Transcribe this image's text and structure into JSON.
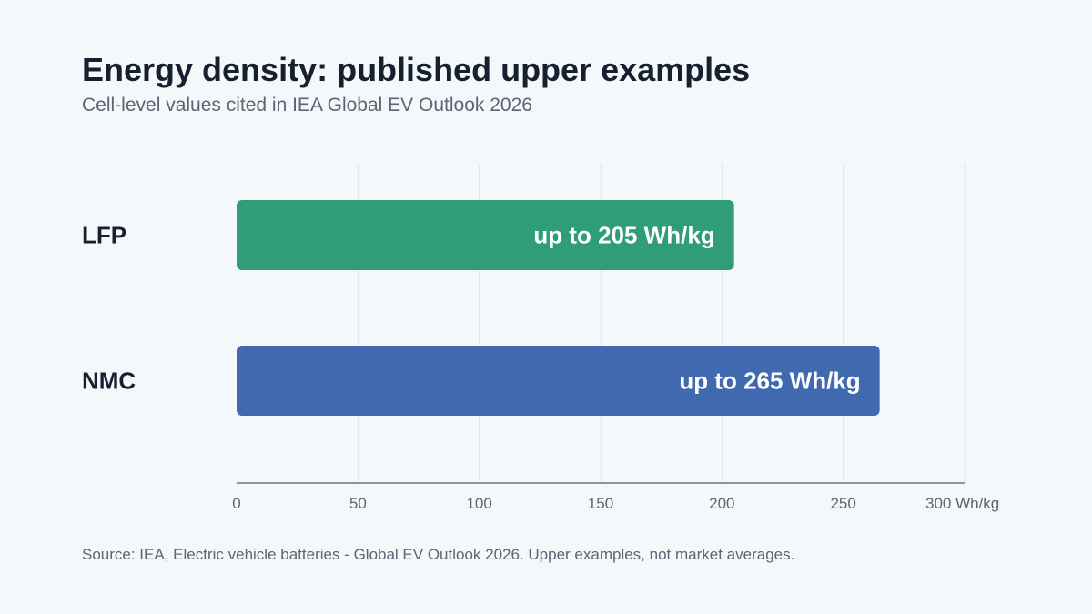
{
  "title": "Energy density: published upper examples",
  "subtitle": "Cell-level values cited in IEA Global EV Outlook 2026",
  "source": "Source: IEA, Electric vehicle batteries - Global EV Outlook 2026. Upper examples, not market averages.",
  "chart_data": {
    "type": "bar",
    "orientation": "horizontal",
    "categories": [
      "LFP",
      "NMC"
    ],
    "values": [
      205,
      265
    ],
    "data_labels": [
      "up to 205 Wh/kg",
      "up to 265 Wh/kg"
    ],
    "colors": [
      "#2f9e78",
      "#4169b0"
    ],
    "xlim": [
      0,
      300
    ],
    "x_ticks": [
      0,
      50,
      100,
      150,
      200,
      250,
      300
    ],
    "x_tick_labels": [
      "0",
      "50",
      "100",
      "150",
      "200",
      "250",
      "300 Wh/kg"
    ],
    "grid": true,
    "legend": "none"
  }
}
